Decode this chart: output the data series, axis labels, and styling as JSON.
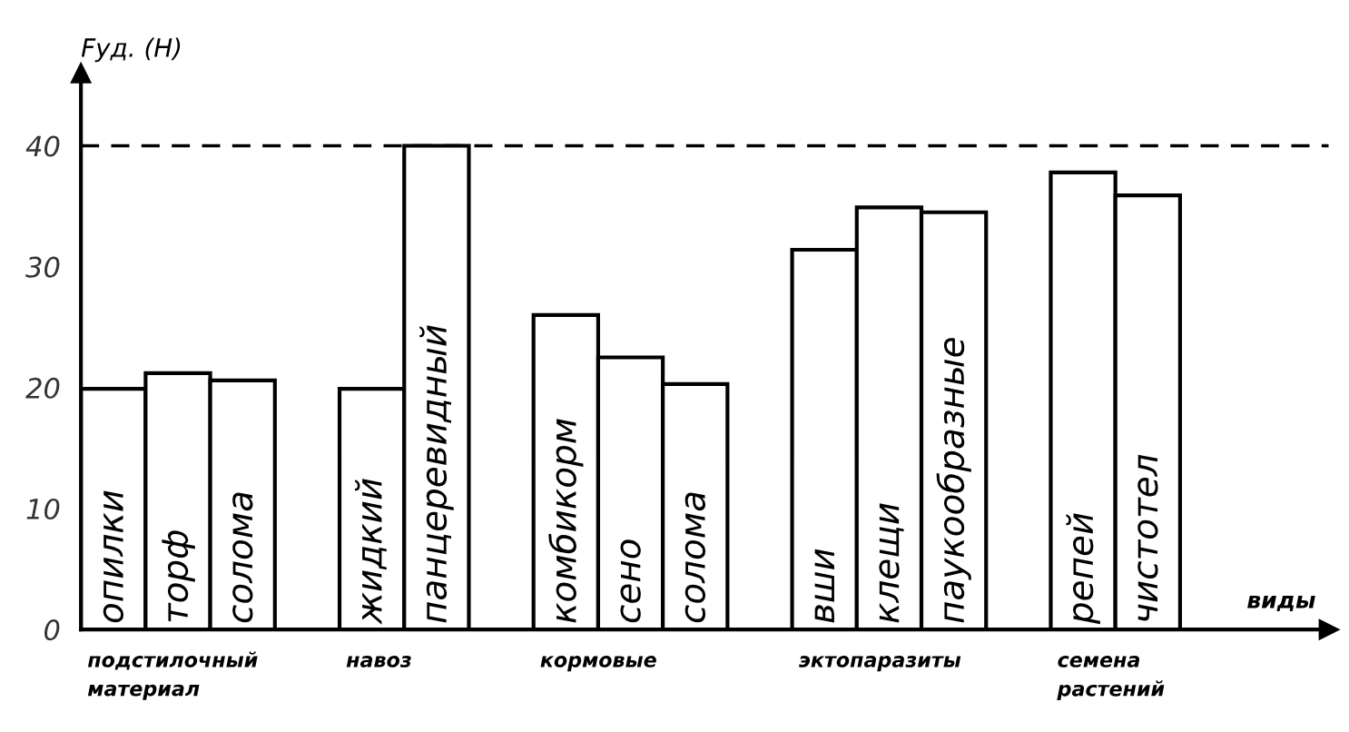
{
  "chart_data": {
    "type": "bar",
    "ylabel": "Fуд. (Н)",
    "xlabel": "виды",
    "categories": [
      "опилки",
      "торф",
      "солома",
      null,
      "жидкий",
      "панцеревидный",
      null,
      "комбикорм",
      "сено",
      "солома",
      null,
      "вши",
      "клещи",
      "паукообразные",
      null,
      "репей",
      "чистотел"
    ],
    "values": [
      19.9,
      21.2,
      20.6,
      null,
      19.9,
      40,
      null,
      26.0,
      22.5,
      20.3,
      null,
      31.4,
      34.9,
      34.5,
      null,
      37.8,
      35.9
    ],
    "color": "#ffffff",
    "ylim": [
      0,
      46
    ],
    "yticks": [
      0,
      10,
      20,
      30,
      40
    ],
    "ref_lines": [
      {
        "axis": "y",
        "value": 40,
        "line_style": "dashed",
        "color": "#000000"
      }
    ],
    "annotations": [
      "подстилочный\nматериал",
      "навоз",
      "кормовые",
      "эктопаразиты",
      "семена\nрастений"
    ]
  }
}
